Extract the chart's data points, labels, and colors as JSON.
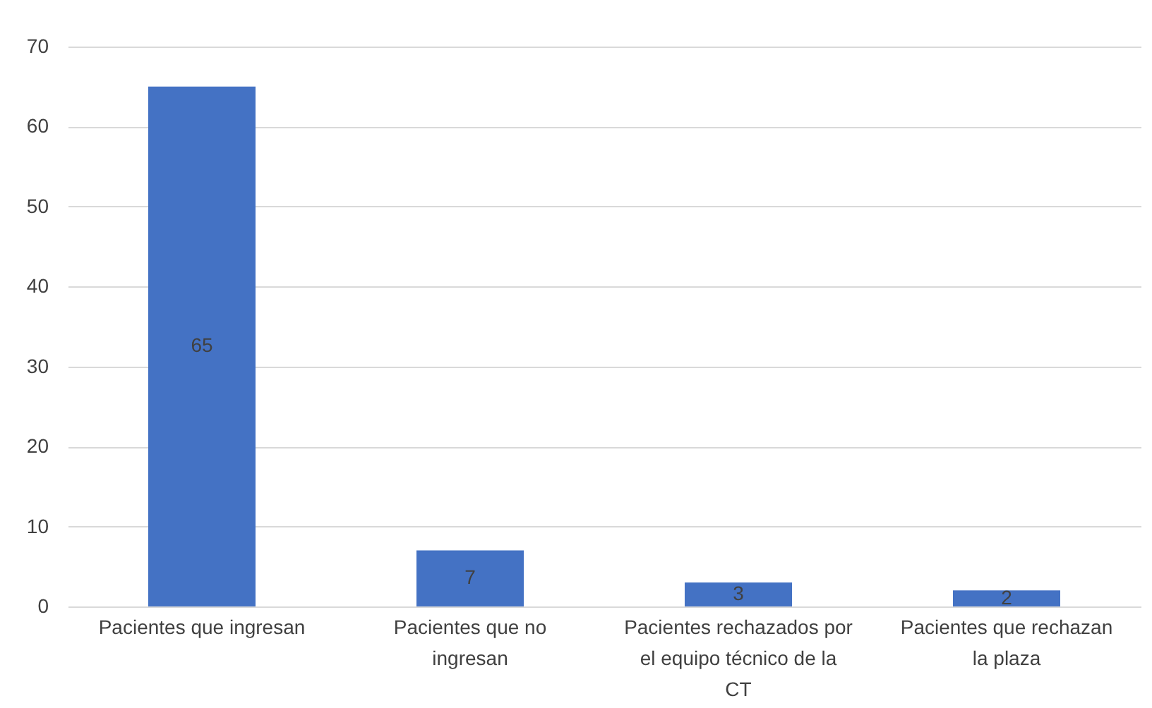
{
  "chart_data": {
    "type": "bar",
    "categories": [
      "Pacientes que ingresan",
      "Pacientes que no ingresan",
      "Pacientes rechazados por el equipo técnico de la CT",
      "Pacientes que rechazan la plaza"
    ],
    "values": [
      65,
      7,
      3,
      2
    ],
    "color": "#4472c4",
    "ylim": [
      0,
      70
    ],
    "yticks": [
      0,
      10,
      20,
      30,
      40,
      50,
      60,
      70
    ],
    "grid": "y",
    "data_labels": true
  }
}
